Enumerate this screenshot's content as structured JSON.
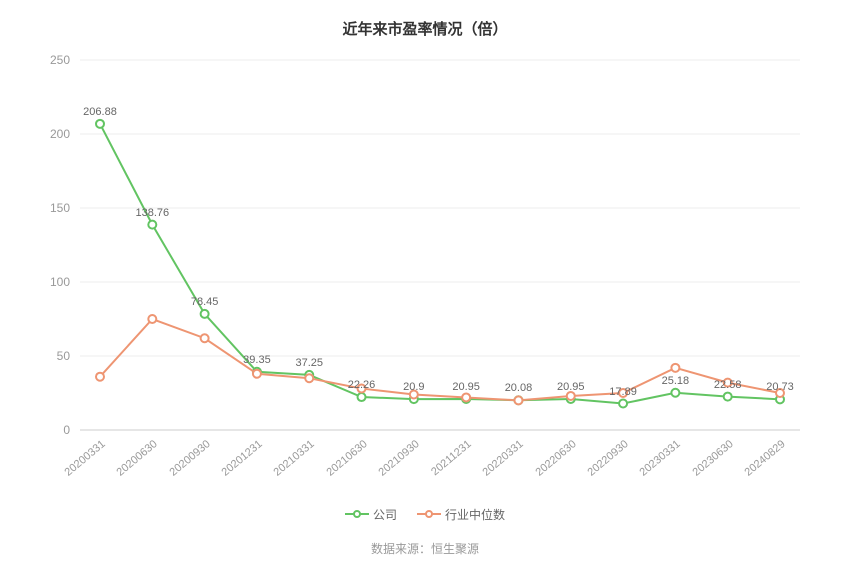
{
  "chart": {
    "type": "line",
    "title": "近年来市盈率情况（倍）",
    "title_fontsize": 15,
    "title_color": "#333333",
    "background_color": "#ffffff",
    "grid_color": "#eeeeee",
    "axis_color": "#cccccc",
    "tick_label_color": "#999999",
    "tick_label_fontsize": 12,
    "data_label_fontsize": 11,
    "data_label_color": "#666666",
    "x_categories": [
      "20200331",
      "20200630",
      "20200930",
      "20201231",
      "20210331",
      "20210630",
      "20210930",
      "20211231",
      "20220331",
      "20220630",
      "20220930",
      "20230331",
      "20230630",
      "20240829"
    ],
    "x_tick_rotation_deg": -40,
    "ylim": [
      0,
      250
    ],
    "ytick_step": 50,
    "line_width": 2,
    "marker_radius": 4,
    "marker_fill": "#ffffff",
    "series": [
      {
        "name": "公司",
        "color": "#62c462",
        "show_labels": true,
        "values": [
          206.88,
          138.76,
          78.45,
          39.35,
          37.25,
          22.26,
          20.9,
          20.95,
          20.08,
          20.95,
          17.89,
          25.18,
          22.58,
          20.73
        ]
      },
      {
        "name": "行业中位数",
        "color": "#ee9572",
        "show_labels": false,
        "values": [
          36,
          75,
          62,
          38,
          35,
          28,
          24,
          22,
          20,
          23,
          25,
          42,
          32,
          25
        ]
      }
    ],
    "legend_position": "bottom",
    "footer": "数据来源：恒生聚源"
  }
}
